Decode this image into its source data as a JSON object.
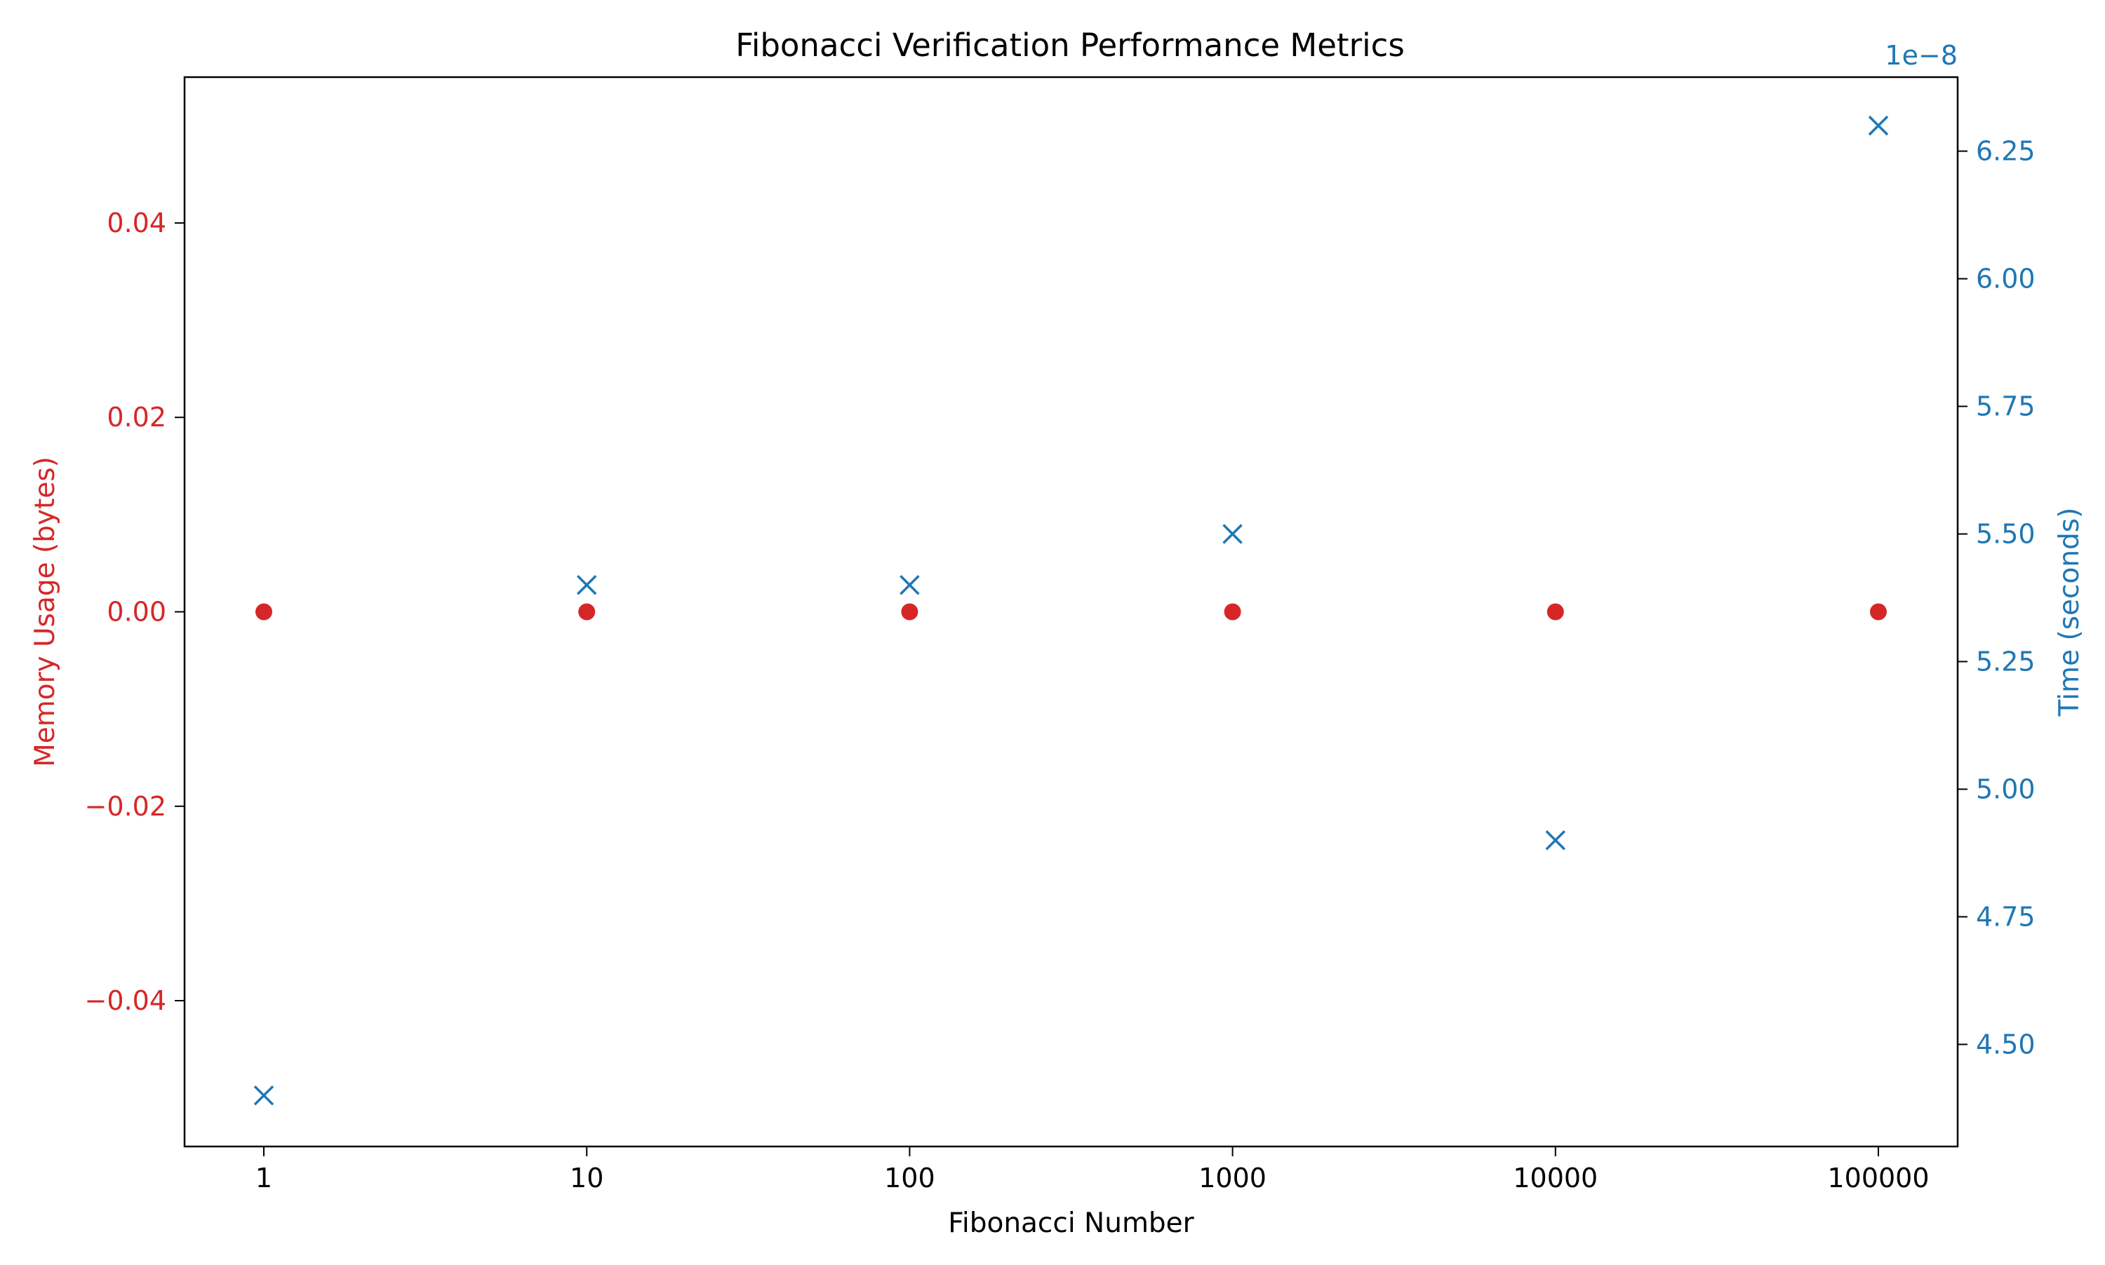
{
  "chart_data": {
    "type": "scatter",
    "title": "Fibonacci Verification Performance Metrics",
    "xlabel": "Fibonacci Number",
    "categories": [
      "1",
      "10",
      "100",
      "1000",
      "10000",
      "100000"
    ],
    "y_left": {
      "label": "Memory Usage (bytes)",
      "color": "#d62728",
      "lim": [
        -0.055,
        0.055
      ],
      "ticks": [
        -0.04,
        -0.02,
        0.0,
        0.02,
        0.04
      ],
      "tick_labels": [
        "−0.04",
        "−0.02",
        "0.00",
        "0.02",
        "0.04"
      ]
    },
    "y_right": {
      "label": "Time (seconds)",
      "color": "#1f77b4",
      "offset_label": "1e−8",
      "lim": [
        4.3,
        6.395
      ],
      "ticks": [
        4.5,
        4.75,
        5.0,
        5.25,
        5.5,
        5.75,
        6.0,
        6.25
      ],
      "tick_labels": [
        "4.50",
        "4.75",
        "5.00",
        "5.25",
        "5.50",
        "5.75",
        "6.00",
        "6.25"
      ]
    },
    "series": [
      {
        "axis": "left",
        "marker": "circle",
        "color": "#d62728",
        "values": [
          0,
          0,
          0,
          0,
          0,
          0
        ]
      },
      {
        "axis": "right",
        "marker": "x",
        "color": "#1f77b4",
        "values": [
          4.4,
          5.4,
          5.4,
          5.5,
          4.9,
          6.3
        ]
      }
    ],
    "grid": false
  }
}
